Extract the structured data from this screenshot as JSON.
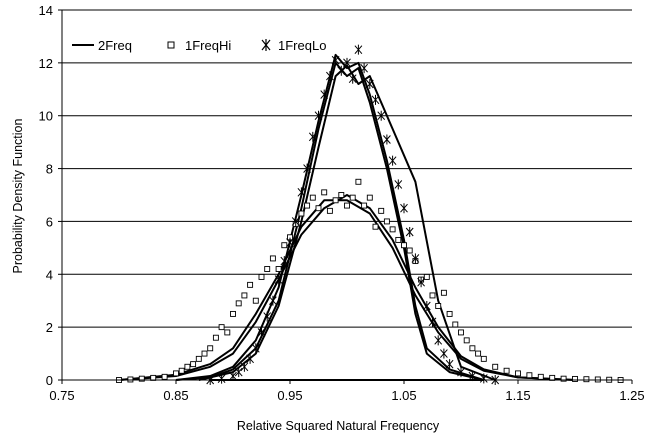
{
  "chart_data": {
    "type": "scatter",
    "title": "",
    "xlabel": "Relative Squared Natural Frequency",
    "ylabel": "Probability Density Function",
    "xlim": [
      0.75,
      1.25
    ],
    "ylim": [
      0,
      14
    ],
    "xticks": [
      "0.75",
      "0.85",
      "0.95",
      "1.05",
      "1.15",
      "1.25"
    ],
    "yticks": [
      "0",
      "2",
      "4",
      "6",
      "8",
      "10",
      "12",
      "14"
    ],
    "grid": "horizontal",
    "legend": {
      "placement": "top-left",
      "entries": [
        "2Freq",
        "1FreqHi",
        "1FreqLo"
      ]
    },
    "series": [
      {
        "name": "2Freq",
        "style": "line",
        "curves": [
          {
            "x": [
              0.8,
              0.85,
              0.88,
              0.9,
              0.92,
              0.94,
              0.96,
              0.98,
              1.0,
              1.02,
              1.04,
              1.06,
              1.08,
              1.1,
              1.12,
              1.15,
              1.2
            ],
            "y": [
              0.0,
              0.2,
              0.6,
              1.2,
              2.5,
              4.0,
              5.8,
              6.8,
              6.8,
              6.3,
              5.0,
              3.2,
              1.8,
              0.8,
              0.35,
              0.1,
              0.0
            ]
          },
          {
            "x": [
              0.8,
              0.85,
              0.88,
              0.9,
              0.92,
              0.94,
              0.96,
              0.98,
              1.0,
              1.02,
              1.04,
              1.06,
              1.08,
              1.1,
              1.12,
              1.15,
              1.2
            ],
            "y": [
              0.0,
              0.15,
              0.5,
              1.0,
              2.2,
              3.8,
              5.5,
              6.5,
              7.0,
              6.5,
              5.3,
              3.5,
              2.0,
              0.9,
              0.4,
              0.1,
              0.0
            ]
          },
          {
            "x": [
              0.85,
              0.88,
              0.9,
              0.92,
              0.94,
              0.96,
              0.975,
              0.99,
              1.0,
              1.01,
              1.02,
              1.035,
              1.05,
              1.06,
              1.07,
              1.09,
              1.12
            ],
            "y": [
              0.0,
              0.1,
              0.4,
              1.2,
              3.0,
              6.5,
              9.5,
              12.0,
              11.5,
              11.8,
              10.5,
              8.0,
              5.0,
              2.5,
              1.0,
              0.3,
              0.0
            ]
          },
          {
            "x": [
              0.85,
              0.88,
              0.9,
              0.92,
              0.94,
              0.96,
              0.975,
              0.99,
              1.0,
              1.01,
              1.02,
              1.035,
              1.05,
              1.06,
              1.07,
              1.09,
              1.12
            ],
            "y": [
              0.0,
              0.15,
              0.5,
              1.5,
              3.5,
              7.0,
              9.8,
              12.3,
              11.8,
              12.0,
              10.8,
              8.3,
              5.3,
              2.8,
              1.2,
              0.4,
              0.0
            ]
          },
          {
            "x": [
              0.87,
              0.9,
              0.92,
              0.94,
              0.96,
              0.975,
              0.99,
              1.0,
              1.01,
              1.02,
              1.04,
              1.06,
              1.08,
              1.1,
              1.13
            ],
            "y": [
              0.0,
              0.3,
              1.0,
              2.8,
              6.0,
              8.8,
              11.5,
              11.9,
              11.2,
              11.5,
              9.5,
              7.5,
              3.0,
              0.5,
              0.0
            ]
          }
        ]
      },
      {
        "name": "1FreqHi",
        "style": "square-markers",
        "x": [
          0.8,
          0.81,
          0.82,
          0.83,
          0.84,
          0.85,
          0.855,
          0.86,
          0.865,
          0.87,
          0.875,
          0.88,
          0.885,
          0.89,
          0.895,
          0.9,
          0.905,
          0.91,
          0.915,
          0.92,
          0.925,
          0.93,
          0.935,
          0.94,
          0.945,
          0.95,
          0.955,
          0.96,
          0.965,
          0.97,
          0.975,
          0.98,
          0.985,
          0.99,
          0.995,
          1.0,
          1.005,
          1.01,
          1.015,
          1.02,
          1.025,
          1.03,
          1.035,
          1.04,
          1.045,
          1.05,
          1.055,
          1.06,
          1.065,
          1.07,
          1.075,
          1.08,
          1.085,
          1.09,
          1.095,
          1.1,
          1.105,
          1.11,
          1.115,
          1.12,
          1.13,
          1.14,
          1.15,
          1.16,
          1.17,
          1.18,
          1.19,
          1.2,
          1.21,
          1.22,
          1.23,
          1.24
        ],
        "y": [
          0.0,
          0.02,
          0.05,
          0.08,
          0.12,
          0.25,
          0.35,
          0.5,
          0.6,
          0.8,
          1.0,
          1.2,
          1.6,
          2.0,
          1.8,
          2.5,
          2.9,
          3.2,
          3.6,
          3.0,
          3.9,
          4.2,
          4.6,
          4.2,
          5.1,
          5.4,
          5.9,
          6.3,
          6.6,
          6.9,
          6.5,
          7.1,
          6.4,
          6.8,
          7.0,
          6.6,
          6.9,
          7.5,
          6.6,
          6.9,
          5.8,
          6.4,
          6.0,
          5.7,
          5.3,
          5.1,
          4.9,
          4.5,
          3.8,
          3.9,
          3.2,
          2.8,
          3.3,
          2.5,
          2.1,
          1.8,
          1.5,
          1.2,
          1.0,
          0.8,
          0.5,
          0.35,
          0.25,
          0.18,
          0.12,
          0.08,
          0.05,
          0.04,
          0.03,
          0.02,
          0.01,
          0.0
        ]
      },
      {
        "name": "1FreqLo",
        "style": "asterisk-markers",
        "x": [
          0.88,
          0.89,
          0.9,
          0.905,
          0.91,
          0.915,
          0.92,
          0.925,
          0.93,
          0.935,
          0.94,
          0.945,
          0.95,
          0.955,
          0.96,
          0.965,
          0.97,
          0.975,
          0.98,
          0.985,
          0.99,
          0.995,
          1.0,
          1.005,
          1.01,
          1.015,
          1.02,
          1.025,
          1.03,
          1.035,
          1.04,
          1.045,
          1.05,
          1.055,
          1.06,
          1.065,
          1.07,
          1.075,
          1.08,
          1.085,
          1.09,
          1.1,
          1.11,
          1.12,
          1.13
        ],
        "y": [
          0.0,
          0.05,
          0.15,
          0.3,
          0.5,
          0.8,
          1.2,
          1.8,
          2.4,
          3.0,
          3.8,
          4.5,
          5.2,
          6.0,
          7.1,
          8.0,
          9.2,
          10.0,
          10.8,
          11.5,
          12.1,
          11.7,
          12.0,
          11.4,
          12.5,
          11.8,
          11.2,
          10.6,
          10.0,
          9.1,
          8.3,
          7.4,
          6.5,
          5.6,
          4.6,
          3.7,
          2.8,
          2.2,
          1.5,
          1.0,
          0.6,
          0.3,
          0.15,
          0.06,
          0.0
        ]
      }
    ]
  }
}
